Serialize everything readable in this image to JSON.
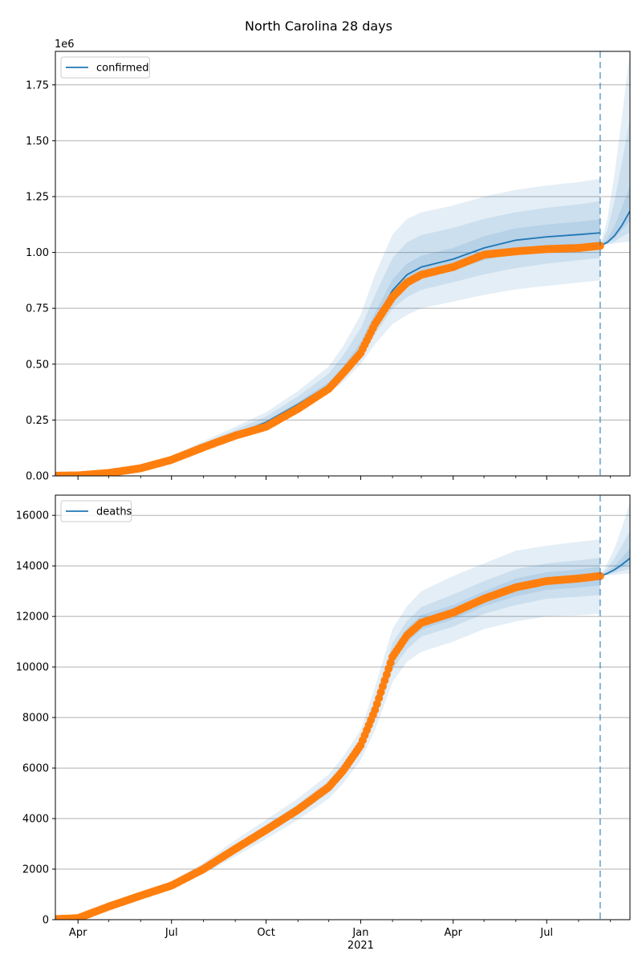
{
  "figure": {
    "title": "North Carolina 28 days"
  },
  "colors": {
    "model_line": "#1f77b4",
    "band": "#1f77b4",
    "observed": "#ff7f0e",
    "grid": "#b0b0b0",
    "forecast_marker": "#1f77b4"
  },
  "chart_data": [
    {
      "type": "line",
      "name": "confirmed-panel",
      "ylabel": "",
      "xlabel": "",
      "offset_text": "1e6",
      "x_range": [
        "2020-03-10",
        "2021-09-20"
      ],
      "ylim": [
        0,
        1900000
      ],
      "y_ticks": [
        0,
        250000,
        500000,
        750000,
        1000000,
        1250000,
        1500000,
        1750000
      ],
      "y_tick_labels": [
        "0.00",
        "0.25",
        "0.50",
        "0.75",
        "1.00",
        "1.25",
        "1.50",
        "1.75"
      ],
      "grid": "y",
      "legend": {
        "position": "top-left",
        "entries": [
          "confirmed"
        ]
      },
      "forecast_start": "2021-08-22",
      "x": [
        "2020-03-10",
        "2020-04-01",
        "2020-05-01",
        "2020-06-01",
        "2020-07-01",
        "2020-08-01",
        "2020-09-01",
        "2020-10-01",
        "2020-11-01",
        "2020-12-01",
        "2020-12-15",
        "2021-01-01",
        "2021-01-15",
        "2021-02-01",
        "2021-02-15",
        "2021-03-01",
        "2021-04-01",
        "2021-05-01",
        "2021-06-01",
        "2021-07-01",
        "2021-08-01",
        "2021-08-22"
      ],
      "series": [
        {
          "name": "confirmed",
          "role": "model",
          "values": [
            2000,
            3000,
            15000,
            38000,
            75000,
            130000,
            185000,
            240000,
            320000,
            405000,
            470000,
            570000,
            690000,
            830000,
            900000,
            935000,
            970000,
            1020000,
            1055000,
            1070000,
            1080000,
            1088000
          ],
          "bands": [
            {
              "lower": [
                1000,
                2000,
                12000,
                33000,
                68000,
                115000,
                165000,
                215000,
                290000,
                370000,
                420000,
                500000,
                590000,
                680000,
                720000,
                750000,
                780000,
                810000,
                835000,
                850000,
                865000,
                875000
              ],
              "upper": [
                3000,
                5000,
                20000,
                46000,
                88000,
                155000,
                220000,
                285000,
                380000,
                490000,
                580000,
                720000,
                900000,
                1080000,
                1150000,
                1180000,
                1210000,
                1250000,
                1280000,
                1300000,
                1315000,
                1330000
              ]
            },
            {
              "lower": [
                1500,
                2500,
                13500,
                35000,
                71000,
                122000,
                174000,
                227000,
                304000,
                385000,
                442000,
                532000,
                634000,
                748000,
                800000,
                833000,
                867000,
                902000,
                930000,
                950000,
                965000,
                975000
              ],
              "upper": [
                2600,
                4200,
                18000,
                43000,
                83000,
                146000,
                206000,
                266000,
                356000,
                458000,
                540000,
                660000,
                810000,
                975000,
                1045000,
                1078000,
                1110000,
                1150000,
                1180000,
                1200000,
                1215000,
                1230000
              ]
            },
            {
              "lower": [
                1800,
                2800,
                14400,
                36800,
                73000,
                126000,
                180000,
                234000,
                313000,
                396000,
                458000,
                552000,
                664000,
                792000,
                855000,
                888000,
                922000,
                965000,
                995000,
                1012000,
                1025000,
                1035000
              ],
              "upper": [
                2200,
                3400,
                16000,
                40000,
                78000,
                136000,
                192000,
                248000,
                330000,
                420000,
                490000,
                598000,
                730000,
                880000,
                950000,
                985000,
                1020000,
                1072000,
                1108000,
                1125000,
                1138000,
                1148000
              ]
            }
          ]
        },
        {
          "name": "observed confirmed",
          "role": "observed",
          "values": [
            1000,
            2000,
            13000,
            34000,
            72000,
            128000,
            180000,
            220000,
            300000,
            390000,
            460000,
            550000,
            680000,
            800000,
            865000,
            900000,
            935000,
            990000,
            1005000,
            1015000,
            1020000,
            1030000
          ]
        },
        {
          "name": "forecast confirmed",
          "role": "forecast",
          "x": [
            "2021-08-22",
            "2021-08-29",
            "2021-09-05",
            "2021-09-12",
            "2021-09-20"
          ],
          "values": [
            1030000,
            1045000,
            1075000,
            1120000,
            1185000
          ],
          "bands": [
            {
              "lower": [
                1030000,
                1035000,
                1040000,
                1045000,
                1050000
              ],
              "upper": [
                1030000,
                1150000,
                1350000,
                1600000,
                1900000
              ]
            },
            {
              "lower": [
                1030000,
                1038000,
                1050000,
                1070000,
                1090000
              ],
              "upper": [
                1030000,
                1100000,
                1230000,
                1400000,
                1600000
              ]
            },
            {
              "lower": [
                1030000,
                1042000,
                1065000,
                1100000,
                1140000
              ],
              "upper": [
                1030000,
                1060000,
                1120000,
                1200000,
                1300000
              ]
            }
          ]
        }
      ]
    },
    {
      "type": "line",
      "name": "deaths-panel",
      "ylabel": "",
      "xlabel": "",
      "x_range": [
        "2020-03-10",
        "2021-09-20"
      ],
      "ylim": [
        0,
        16800
      ],
      "y_ticks": [
        0,
        2000,
        4000,
        6000,
        8000,
        10000,
        12000,
        14000,
        16000
      ],
      "y_tick_labels": [
        "0",
        "2000",
        "4000",
        "6000",
        "8000",
        "10000",
        "12000",
        "14000",
        "16000"
      ],
      "x_ticks": [
        "2020-04-01",
        "2020-07-01",
        "2020-10-01",
        "2021-01-01",
        "2021-04-01",
        "2021-07-01"
      ],
      "x_tick_labels": [
        "Apr",
        "Jul",
        "Oct",
        "Jan",
        "Apr",
        "Jul"
      ],
      "x_minor_ticks": [
        "2020-05-01",
        "2020-06-01",
        "2020-08-01",
        "2020-09-01",
        "2020-11-01",
        "2020-12-01",
        "2021-02-01",
        "2021-03-01",
        "2021-05-01",
        "2021-06-01",
        "2021-08-01",
        "2021-09-01"
      ],
      "year_label": "2021",
      "grid": "y",
      "legend": {
        "position": "top-left",
        "entries": [
          "deaths"
        ]
      },
      "forecast_start": "2021-08-22",
      "x": [
        "2020-03-10",
        "2020-04-01",
        "2020-05-01",
        "2020-06-01",
        "2020-07-01",
        "2020-08-01",
        "2020-09-01",
        "2020-10-01",
        "2020-11-01",
        "2020-12-01",
        "2020-12-15",
        "2021-01-01",
        "2021-01-15",
        "2021-02-01",
        "2021-02-15",
        "2021-03-01",
        "2021-04-01",
        "2021-05-01",
        "2021-06-01",
        "2021-07-01",
        "2021-08-01",
        "2021-08-22"
      ],
      "series": [
        {
          "name": "deaths",
          "role": "model",
          "values": [
            20,
            60,
            520,
            950,
            1350,
            2000,
            2800,
            3550,
            4350,
            5250,
            5900,
            6900,
            8300,
            10400,
            11250,
            11750,
            12150,
            12700,
            13150,
            13400,
            13500,
            13600
          ],
          "bands": [
            {
              "lower": [
                10,
                40,
                450,
                850,
                1200,
                1800,
                2500,
                3200,
                3950,
                4800,
                5400,
                6300,
                7500,
                9400,
                10200,
                10600,
                11000,
                11500,
                11800,
                12000,
                12050,
                12100
              ],
              "upper": [
                30,
                80,
                600,
                1050,
                1500,
                2250,
                3150,
                3950,
                4800,
                5750,
                6450,
                7500,
                9200,
                11500,
                12400,
                13000,
                13600,
                14100,
                14600,
                14800,
                14950,
                15050
              ]
            },
            {
              "lower": [
                15,
                50,
                485,
                900,
                1270,
                1900,
                2650,
                3370,
                4150,
                5020,
                5650,
                6600,
                7900,
                9900,
                10700,
                11200,
                11600,
                12100,
                12450,
                12700,
                12780,
                12850
              ],
              "upper": [
                25,
                70,
                560,
                1000,
                1430,
                2130,
                2980,
                3750,
                4580,
                5500,
                6180,
                7200,
                8750,
                10950,
                11820,
                12370,
                12870,
                13400,
                13870,
                14100,
                14220,
                14320
              ]
            },
            {
              "lower": [
                18,
                55,
                500,
                925,
                1310,
                1950,
                2720,
                3460,
                4250,
                5130,
                5770,
                6750,
                8100,
                10150,
                10970,
                11480,
                11880,
                12400,
                12800,
                13050,
                13140,
                13230
              ],
              "upper": [
                22,
                65,
                540,
                975,
                1390,
                2060,
                2880,
                3640,
                4450,
                5370,
                6030,
                7050,
                8500,
                10650,
                11530,
                12060,
                12450,
                13000,
                13500,
                13750,
                13860,
                13970
              ]
            }
          ]
        },
        {
          "name": "observed deaths",
          "role": "observed",
          "values": [
            20,
            60,
            520,
            950,
            1350,
            2000,
            2800,
            3550,
            4350,
            5250,
            5900,
            6900,
            8300,
            10400,
            11250,
            11750,
            12150,
            12700,
            13150,
            13400,
            13500,
            13600
          ]
        },
        {
          "name": "forecast deaths",
          "role": "forecast",
          "x": [
            "2021-08-22",
            "2021-08-29",
            "2021-09-05",
            "2021-09-12",
            "2021-09-20"
          ],
          "values": [
            13600,
            13700,
            13850,
            14050,
            14300
          ],
          "bands": [
            {
              "lower": [
                13600,
                13620,
                13650,
                13680,
                13700
              ],
              "upper": [
                13600,
                14100,
                14700,
                15500,
                16500
              ]
            },
            {
              "lower": [
                13600,
                13650,
                13720,
                13800,
                13880
              ],
              "upper": [
                13600,
                13900,
                14300,
                14800,
                15400
              ]
            },
            {
              "lower": [
                13600,
                13680,
                13790,
                13930,
                14100
              ],
              "upper": [
                13600,
                13760,
                14000,
                14320,
                14700
              ]
            }
          ]
        }
      ]
    }
  ]
}
